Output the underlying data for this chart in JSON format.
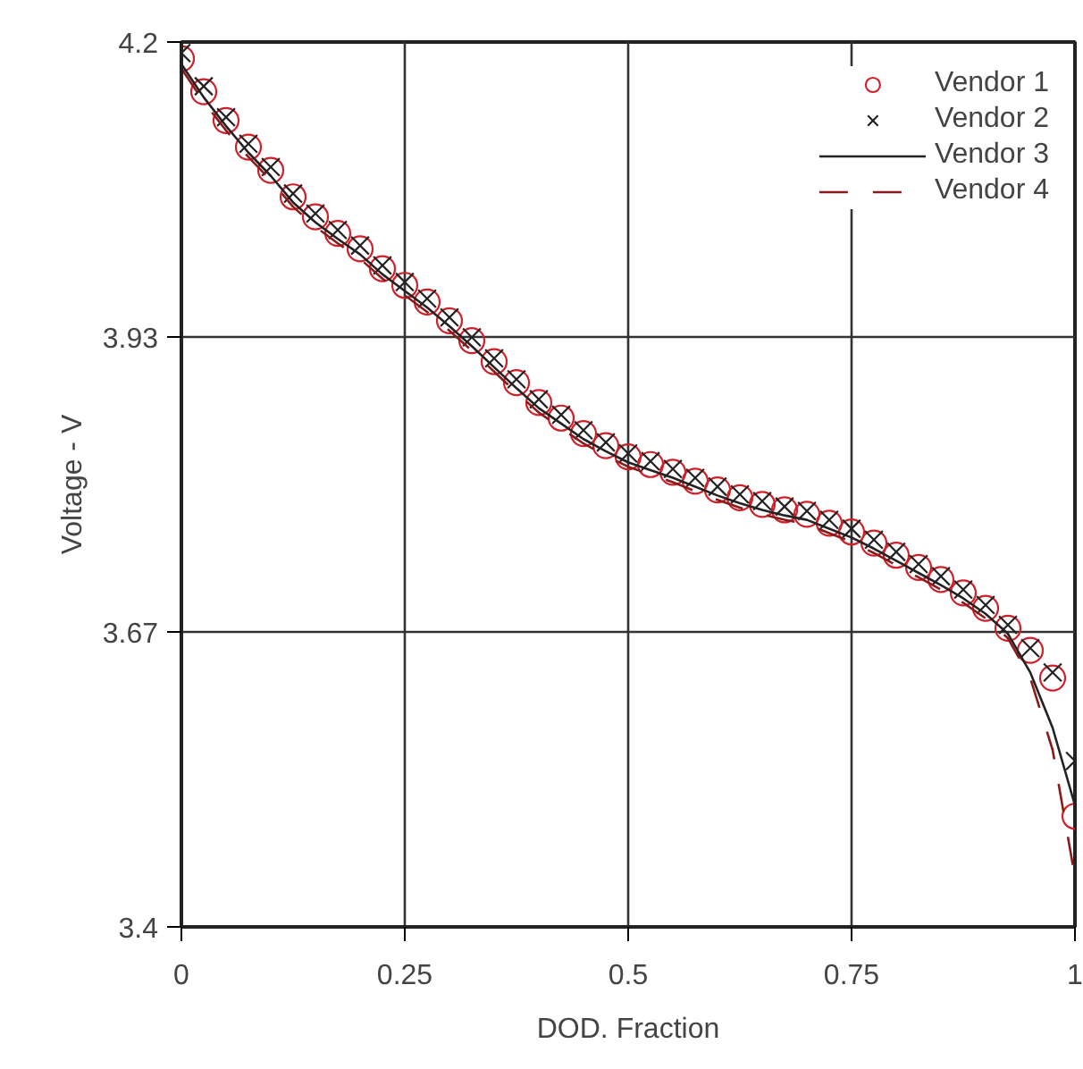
{
  "chart_data": {
    "type": "line",
    "xlabel": "DOD. Fraction",
    "ylabel": "Voltage - V",
    "x": [
      0,
      0.025,
      0.05,
      0.075,
      0.1,
      0.125,
      0.15,
      0.175,
      0.2,
      0.225,
      0.25,
      0.275,
      0.3,
      0.325,
      0.35,
      0.375,
      0.4,
      0.425,
      0.45,
      0.475,
      0.5,
      0.525,
      0.55,
      0.575,
      0.6,
      0.625,
      0.65,
      0.675,
      0.7,
      0.725,
      0.75,
      0.775,
      0.8,
      0.825,
      0.85,
      0.875,
      0.9,
      0.925,
      0.95,
      0.975,
      1
    ],
    "series": [
      {
        "name": "Vendor 1",
        "type": "scatter",
        "marker": "circle",
        "color": "#d0202a",
        "values": [
          4.185,
          4.155,
          4.129,
          4.105,
          4.084,
          4.06,
          4.042,
          4.027,
          4.013,
          3.995,
          3.98,
          3.965,
          3.948,
          3.93,
          3.911,
          3.892,
          3.874,
          3.86,
          3.846,
          3.835,
          3.825,
          3.818,
          3.811,
          3.803,
          3.795,
          3.788,
          3.782,
          3.777,
          3.773,
          3.765,
          3.757,
          3.747,
          3.736,
          3.725,
          3.714,
          3.702,
          3.688,
          3.67,
          3.65,
          3.625,
          3.5
        ]
      },
      {
        "name": "Vendor 2",
        "type": "scatter",
        "marker": "cross",
        "color": "#222222",
        "values": [
          4.19,
          4.16,
          4.132,
          4.108,
          4.087,
          4.063,
          4.045,
          4.03,
          4.016,
          3.998,
          3.983,
          3.968,
          3.951,
          3.933,
          3.914,
          3.895,
          3.877,
          3.863,
          3.849,
          3.838,
          3.828,
          3.821,
          3.814,
          3.806,
          3.798,
          3.791,
          3.785,
          3.78,
          3.776,
          3.768,
          3.76,
          3.75,
          3.739,
          3.728,
          3.717,
          3.705,
          3.691,
          3.673,
          3.652,
          3.63,
          3.55
        ]
      },
      {
        "name": "Vendor 3",
        "line_style": "solid",
        "color": "#222222",
        "values": [
          4.18,
          4.15,
          4.124,
          4.1,
          4.079,
          4.055,
          4.037,
          4.022,
          4.008,
          3.99,
          3.975,
          3.96,
          3.943,
          3.925,
          3.906,
          3.887,
          3.869,
          3.855,
          3.841,
          3.83,
          3.82,
          3.813,
          3.806,
          3.798,
          3.79,
          3.783,
          3.777,
          3.772,
          3.768,
          3.76,
          3.752,
          3.742,
          3.731,
          3.72,
          3.709,
          3.697,
          3.683,
          3.665,
          3.63,
          3.58,
          3.51
        ]
      },
      {
        "name": "Vendor 4",
        "line_style": "dashed",
        "color": "#8b1a1a",
        "values": [
          4.176,
          4.146,
          4.12,
          4.096,
          4.075,
          4.051,
          4.033,
          4.018,
          4.004,
          3.986,
          3.971,
          3.956,
          3.939,
          3.921,
          3.902,
          3.883,
          3.865,
          3.851,
          3.837,
          3.826,
          3.816,
          3.809,
          3.802,
          3.794,
          3.786,
          3.779,
          3.773,
          3.768,
          3.764,
          3.756,
          3.748,
          3.738,
          3.727,
          3.716,
          3.705,
          3.693,
          3.679,
          3.661,
          3.625,
          3.56,
          3.445
        ]
      }
    ],
    "xlim": [
      0,
      1
    ],
    "xticks": [
      0,
      0.25,
      0.5,
      0.75,
      1
    ],
    "ylim": [
      3.4,
      4.2
    ],
    "yticks": [
      3.4,
      {
        "value": 3.6667,
        "label": "3.67"
      },
      {
        "value": 3.9333,
        "label": "3.93"
      },
      4.2
    ],
    "grid": true,
    "legend": "top right"
  }
}
